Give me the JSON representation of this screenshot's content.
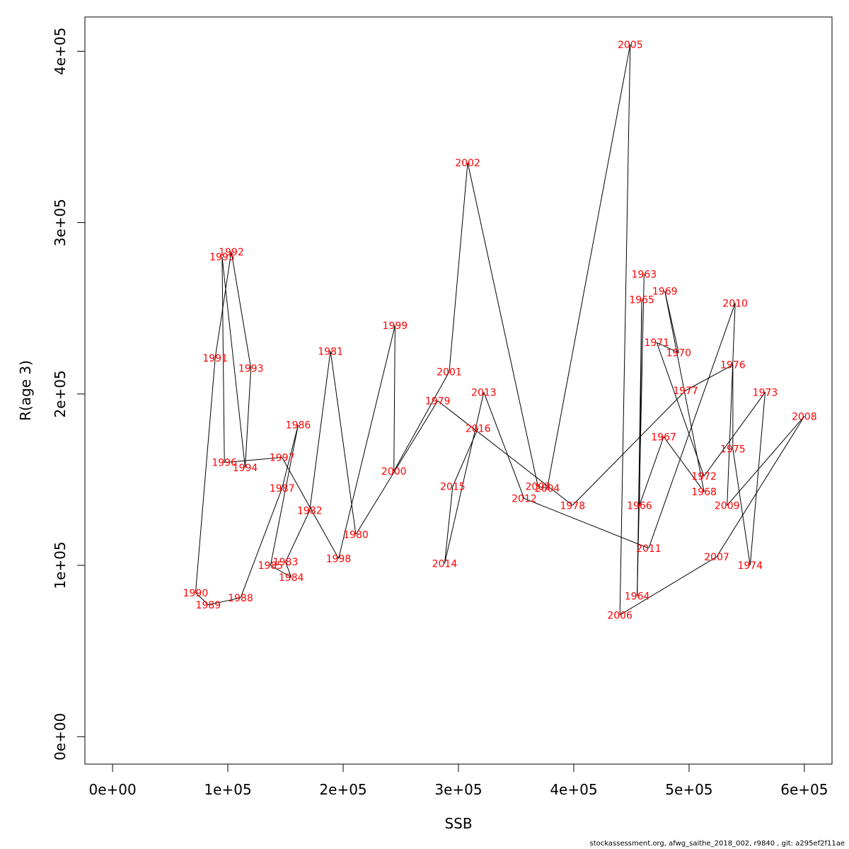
{
  "chart_data": {
    "type": "line",
    "title": "",
    "xlabel": "SSB",
    "ylabel": "R(age 3)",
    "xlim": [
      -24000,
      624000
    ],
    "ylim": [
      -16000,
      420000
    ],
    "x_ticks": [
      0,
      100000,
      200000,
      300000,
      400000,
      500000,
      600000
    ],
    "x_tick_labels": [
      "0e+00",
      "1e+05",
      "2e+05",
      "3e+05",
      "4e+05",
      "5e+05",
      "6e+05"
    ],
    "y_ticks": [
      0,
      100000,
      200000,
      300000,
      400000
    ],
    "y_tick_labels": [
      "0e+00",
      "1e+05",
      "2e+05",
      "3e+05",
      "4e+05"
    ],
    "grid": false,
    "label_color": "#ff0000",
    "line_color": "#000000",
    "points": [
      {
        "year": "1963",
        "x": 461000,
        "y": 270000
      },
      {
        "year": "1964",
        "x": 455000,
        "y": 82000
      },
      {
        "year": "1965",
        "x": 459000,
        "y": 255000
      },
      {
        "year": "1966",
        "x": 457000,
        "y": 135000
      },
      {
        "year": "1967",
        "x": 478000,
        "y": 175000
      },
      {
        "year": "1968",
        "x": 513000,
        "y": 143000
      },
      {
        "year": "1969",
        "x": 479000,
        "y": 260000
      },
      {
        "year": "1970",
        "x": 491000,
        "y": 224000
      },
      {
        "year": "1971",
        "x": 472000,
        "y": 230000
      },
      {
        "year": "1972",
        "x": 513000,
        "y": 152000
      },
      {
        "year": "1973",
        "x": 566000,
        "y": 201000
      },
      {
        "year": "1974",
        "x": 553000,
        "y": 100000
      },
      {
        "year": "1975",
        "x": 538000,
        "y": 168000
      },
      {
        "year": "1976",
        "x": 538000,
        "y": 217000
      },
      {
        "year": "1977",
        "x": 497000,
        "y": 202000
      },
      {
        "year": "1978",
        "x": 399000,
        "y": 135000
      },
      {
        "year": "1979",
        "x": 282000,
        "y": 196000
      },
      {
        "year": "1980",
        "x": 211000,
        "y": 118000
      },
      {
        "year": "1981",
        "x": 189000,
        "y": 225000
      },
      {
        "year": "1982",
        "x": 171000,
        "y": 132000
      },
      {
        "year": "1983",
        "x": 150000,
        "y": 102000
      },
      {
        "year": "1984",
        "x": 155000,
        "y": 93000
      },
      {
        "year": "1985",
        "x": 137000,
        "y": 100000
      },
      {
        "year": "1986",
        "x": 161000,
        "y": 182000
      },
      {
        "year": "1987",
        "x": 147000,
        "y": 145000
      },
      {
        "year": "1988",
        "x": 111000,
        "y": 81000
      },
      {
        "year": "1989",
        "x": 83000,
        "y": 77000
      },
      {
        "year": "1990",
        "x": 72000,
        "y": 84000
      },
      {
        "year": "1991",
        "x": 89000,
        "y": 221000
      },
      {
        "year": "1992",
        "x": 103000,
        "y": 283000
      },
      {
        "year": "1993",
        "x": 120000,
        "y": 215000
      },
      {
        "year": "1994",
        "x": 115000,
        "y": 157000
      },
      {
        "year": "1995",
        "x": 95000,
        "y": 280000
      },
      {
        "year": "1996",
        "x": 97000,
        "y": 160000
      },
      {
        "year": "1997",
        "x": 147000,
        "y": 163000
      },
      {
        "year": "1998",
        "x": 196000,
        "y": 104000
      },
      {
        "year": "1999",
        "x": 245000,
        "y": 240000
      },
      {
        "year": "2000",
        "x": 244000,
        "y": 155000
      },
      {
        "year": "2001",
        "x": 292000,
        "y": 213000
      },
      {
        "year": "2002",
        "x": 308000,
        "y": 335000
      },
      {
        "year": "2003",
        "x": 369000,
        "y": 146000
      },
      {
        "year": "2004",
        "x": 377000,
        "y": 145000
      },
      {
        "year": "2005",
        "x": 449000,
        "y": 404000
      },
      {
        "year": "2006",
        "x": 440000,
        "y": 71000
      },
      {
        "year": "2007",
        "x": 524000,
        "y": 105000
      },
      {
        "year": "2008",
        "x": 600000,
        "y": 187000
      },
      {
        "year": "2009",
        "x": 533000,
        "y": 135000
      },
      {
        "year": "2010",
        "x": 540000,
        "y": 253000
      },
      {
        "year": "2011",
        "x": 465000,
        "y": 110000
      },
      {
        "year": "2012",
        "x": 357000,
        "y": 139000
      },
      {
        "year": "2013",
        "x": 322000,
        "y": 201000
      },
      {
        "year": "2014",
        "x": 288000,
        "y": 101000
      },
      {
        "year": "2015",
        "x": 295000,
        "y": 146000
      },
      {
        "year": "2016",
        "x": 317000,
        "y": 180000
      }
    ]
  },
  "footer_text": "stockassessment.org, afwg_saithe_2018_002, r9840 , git: a295ef2f11ae"
}
